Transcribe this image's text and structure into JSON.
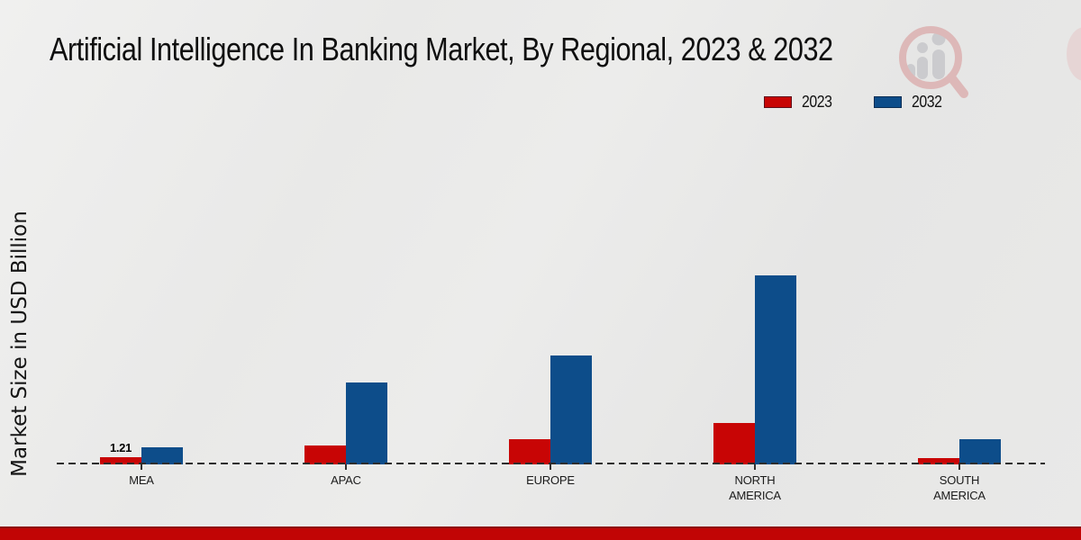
{
  "title": "Artificial Intelligence In Banking Market, By Regional, 2023 & 2032",
  "y_axis_label": "Market Size in USD Billion",
  "legend": {
    "items": [
      {
        "label": "2023",
        "color": "#c80505"
      },
      {
        "label": "2032",
        "color": "#0d4d8a"
      }
    ]
  },
  "colors": {
    "series_2023": "#c80505",
    "series_2032": "#0d4d8a",
    "baseline": "#2d2d2d",
    "footer_bar": "#c10505",
    "footer_bar_edge": "#8f0d0d"
  },
  "chart_data": {
    "type": "bar",
    "title": "Artificial Intelligence In Banking Market, By Regional, 2023 & 2032",
    "xlabel": "",
    "ylabel": "Market Size in USD Billion",
    "categories": [
      "MEA",
      "APAC",
      "EUROPE",
      "NORTH AMERICA",
      "SOUTH AMERICA"
    ],
    "series": [
      {
        "name": "2023",
        "color": "#c80505",
        "values": [
          1.21,
          3.2,
          4.3,
          7.0,
          1.05
        ],
        "data_labels": [
          "1.21",
          "",
          "",
          "",
          ""
        ]
      },
      {
        "name": "2032",
        "color": "#0d4d8a",
        "values": [
          2.8,
          13.8,
          18.3,
          31.7,
          4.2
        ],
        "data_labels": [
          "",
          "",
          "",
          "",
          ""
        ]
      }
    ],
    "ylim": [
      0,
      33
    ],
    "grid": false,
    "legend_position": "upper right",
    "baseline_style": "dashed",
    "annotations": [
      "Only the MEA 2023 bar carries a printed value label: 1.21"
    ]
  },
  "watermark": {
    "name": "market-research-future-logo",
    "style": "faded magnifier over gray figure bars"
  }
}
